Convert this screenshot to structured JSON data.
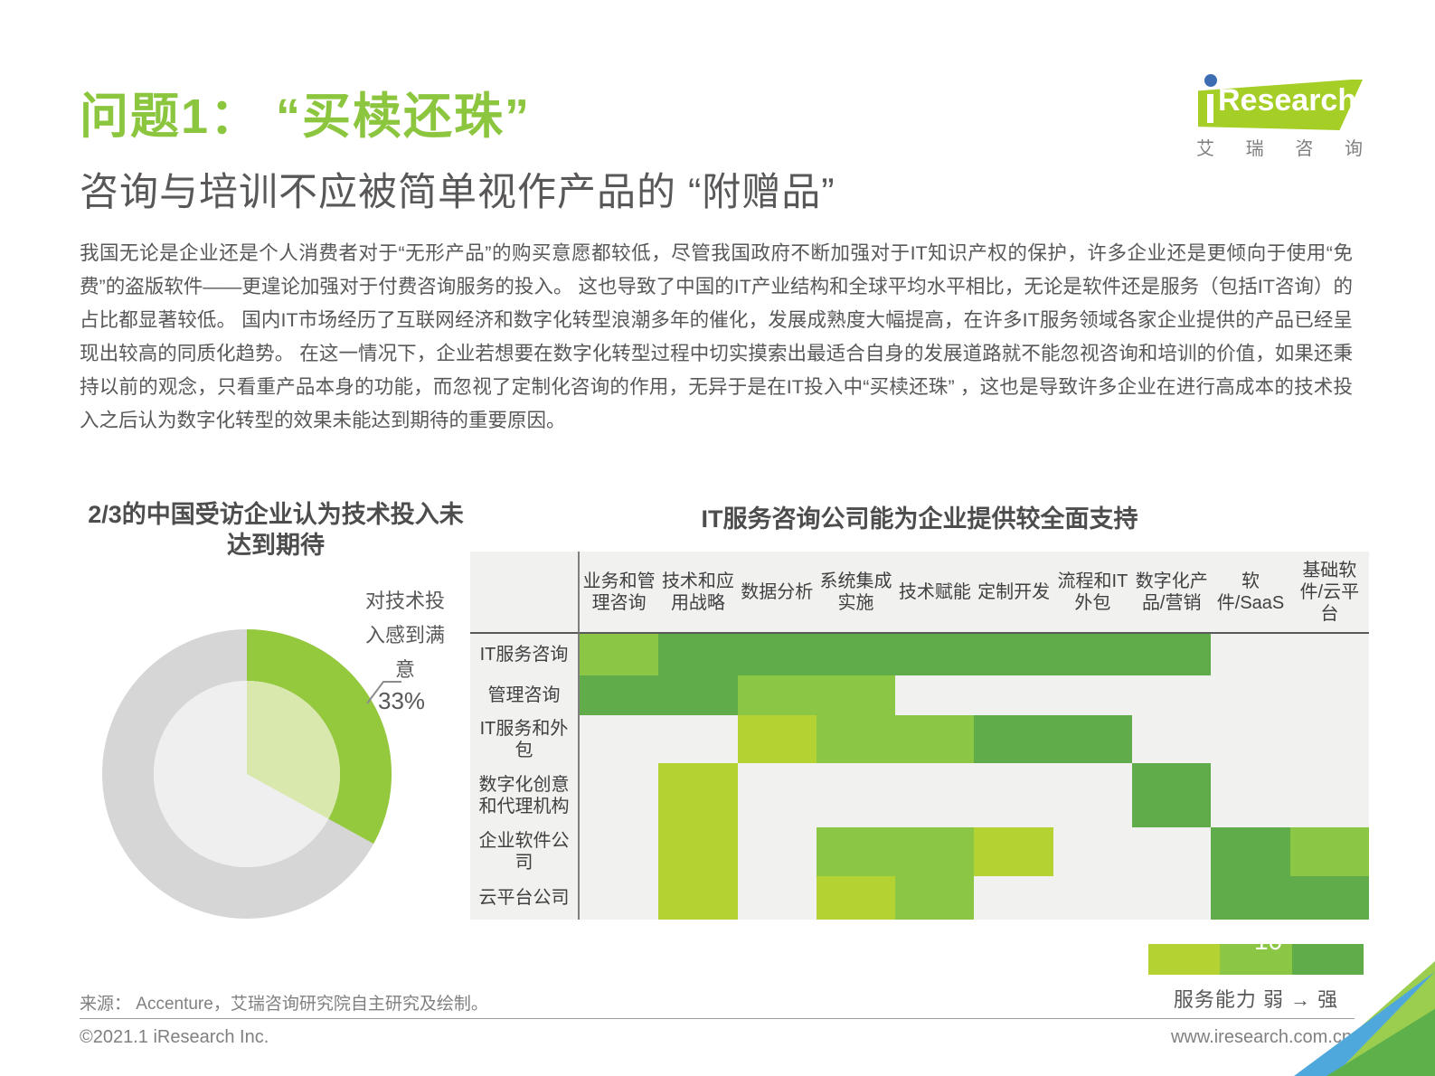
{
  "heading": {
    "title": "问题1： “买椟还珠”",
    "subtitle": "咨询与培训不应被简单视作产品的 “附赠品”"
  },
  "logo": {
    "brand": "Research",
    "cn_chars": [
      "艾",
      "瑞",
      "咨",
      "询"
    ]
  },
  "body_text": "我国无论是企业还是个人消费者对于“无形产品”的购买意愿都较低，尽管我国政府不断加强对于IT知识产权的保护，许多企业还是更倾向于使用“免费”的盗版软件——更遑论加强对于付费咨询服务的投入。 这也导致了中国的IT产业结构和全球平均水平相比，无论是软件还是服务（包括IT咨询）的占比都显著较低。 国内IT市场经历了互联网经济和数字化转型浪潮多年的催化，发展成熟度大幅提高，在许多IT服务领域各家企业提供的产品已经呈现出较高的同质化趋势。 在这一情况下，企业若想要在数字化转型过程中切实摸索出最适合自身的发展道路就不能忽视咨询和培训的价值，如果还秉持以前的观念，只看重产品本身的功能，而忽视了定制化咨询的作用，无异于是在IT投入中“买椟还珠” ，这也是导致许多企业在进行高成本的技术投入之后认为数字化转型的效果未能达到期待的重要原因。",
  "pie": {
    "title": "2/3的中国受访企业认为技术投入未达到期待",
    "label": "对技术投入感到满意",
    "value_label": "33%"
  },
  "heatmap": {
    "title": "IT服务咨询公司能为企业提供较全面支持",
    "columns": [
      "业务和管理咨询",
      "技术和应用战略",
      "数据分析",
      "系统集成实施",
      "技术赋能",
      "定制开发",
      "流程和IT外包",
      "数字化产品/营销",
      "软件/SaaS",
      "基础软件/云平台"
    ],
    "rows": [
      {
        "label": "IT服务咨询",
        "levels": [
          2,
          3,
          3,
          3,
          3,
          3,
          3,
          3,
          0,
          0
        ]
      },
      {
        "label": "管理咨询",
        "levels": [
          3,
          3,
          2,
          2,
          0,
          0,
          0,
          0,
          0,
          0
        ]
      },
      {
        "label": "IT服务和外包",
        "levels": [
          0,
          0,
          1,
          2,
          2,
          3,
          3,
          0,
          0,
          0
        ]
      },
      {
        "label": "数字化创意和代理机构",
        "levels": [
          0,
          1,
          0,
          0,
          0,
          0,
          0,
          3,
          0,
          0
        ]
      },
      {
        "label": "企业软件公司",
        "levels": [
          0,
          1,
          0,
          2,
          2,
          1,
          0,
          0,
          3,
          2
        ]
      },
      {
        "label": "云平台公司",
        "levels": [
          0,
          1,
          0,
          1,
          2,
          0,
          0,
          0,
          3,
          3
        ]
      }
    ],
    "legend_text": "服务能力 弱 → 强"
  },
  "chart_data": [
    {
      "type": "pie",
      "title": "2/3的中国受访企业认为技术投入未达到期待",
      "labels": [
        "对技术投入感到满意",
        ""
      ],
      "values": [
        33,
        67
      ],
      "annotation": "33%",
      "style": "donut-with-inner-disc",
      "start_angle": "top",
      "direction": "clockwise",
      "colors": [
        "#94C83D",
        "#D6D6D6"
      ]
    },
    {
      "type": "heatmap",
      "title": "IT服务咨询公司能为企业提供较全面支持",
      "x_categories": [
        "业务和管理咨询",
        "技术和应用战略",
        "数据分析",
        "系统集成实施",
        "技术赋能",
        "定制开发",
        "流程和IT外包",
        "数字化产品/营销",
        "软件/SaaS",
        "基础软件/云平台"
      ],
      "y_categories": [
        "IT服务咨询",
        "管理咨询",
        "IT服务和外包",
        "数字化创意和代理机构",
        "企业软件公司",
        "云平台公司"
      ],
      "values": [
        [
          2,
          3,
          3,
          3,
          3,
          3,
          3,
          3,
          0,
          0
        ],
        [
          3,
          3,
          2,
          2,
          0,
          0,
          0,
          0,
          0,
          0
        ],
        [
          0,
          0,
          1,
          2,
          2,
          3,
          3,
          0,
          0,
          0
        ],
        [
          0,
          1,
          0,
          0,
          0,
          0,
          0,
          3,
          0,
          0
        ],
        [
          0,
          1,
          0,
          2,
          2,
          1,
          0,
          0,
          3,
          2
        ],
        [
          0,
          1,
          0,
          1,
          2,
          0,
          0,
          0,
          3,
          3
        ]
      ],
      "value_scale": {
        "0": "无",
        "1": "弱",
        "2": "中",
        "3": "强"
      },
      "legend": "服务能力 弱 → 强",
      "legend_position": "bottom-right"
    }
  ],
  "source": "来源： Accenture，艾瑞咨询研究院自主研究及绘制。",
  "footer": {
    "left": "©2021.1 iResearch Inc.",
    "right": "www.iresearch.com.cn",
    "page": "10"
  },
  "colors": {
    "accent_green": "#8CC63F",
    "heat_none": "#F1F1F0",
    "heat_weak": "#B4D333",
    "heat_medium": "#8CC645",
    "heat_strong": "#60AC4A",
    "pie_green": "#94C83D",
    "pie_gray": "#D6D6D6",
    "pie_inner_green": "#D9E8AC",
    "pie_inner_gray": "#EFEFEF",
    "logo_blue": "#3D6EB4"
  }
}
